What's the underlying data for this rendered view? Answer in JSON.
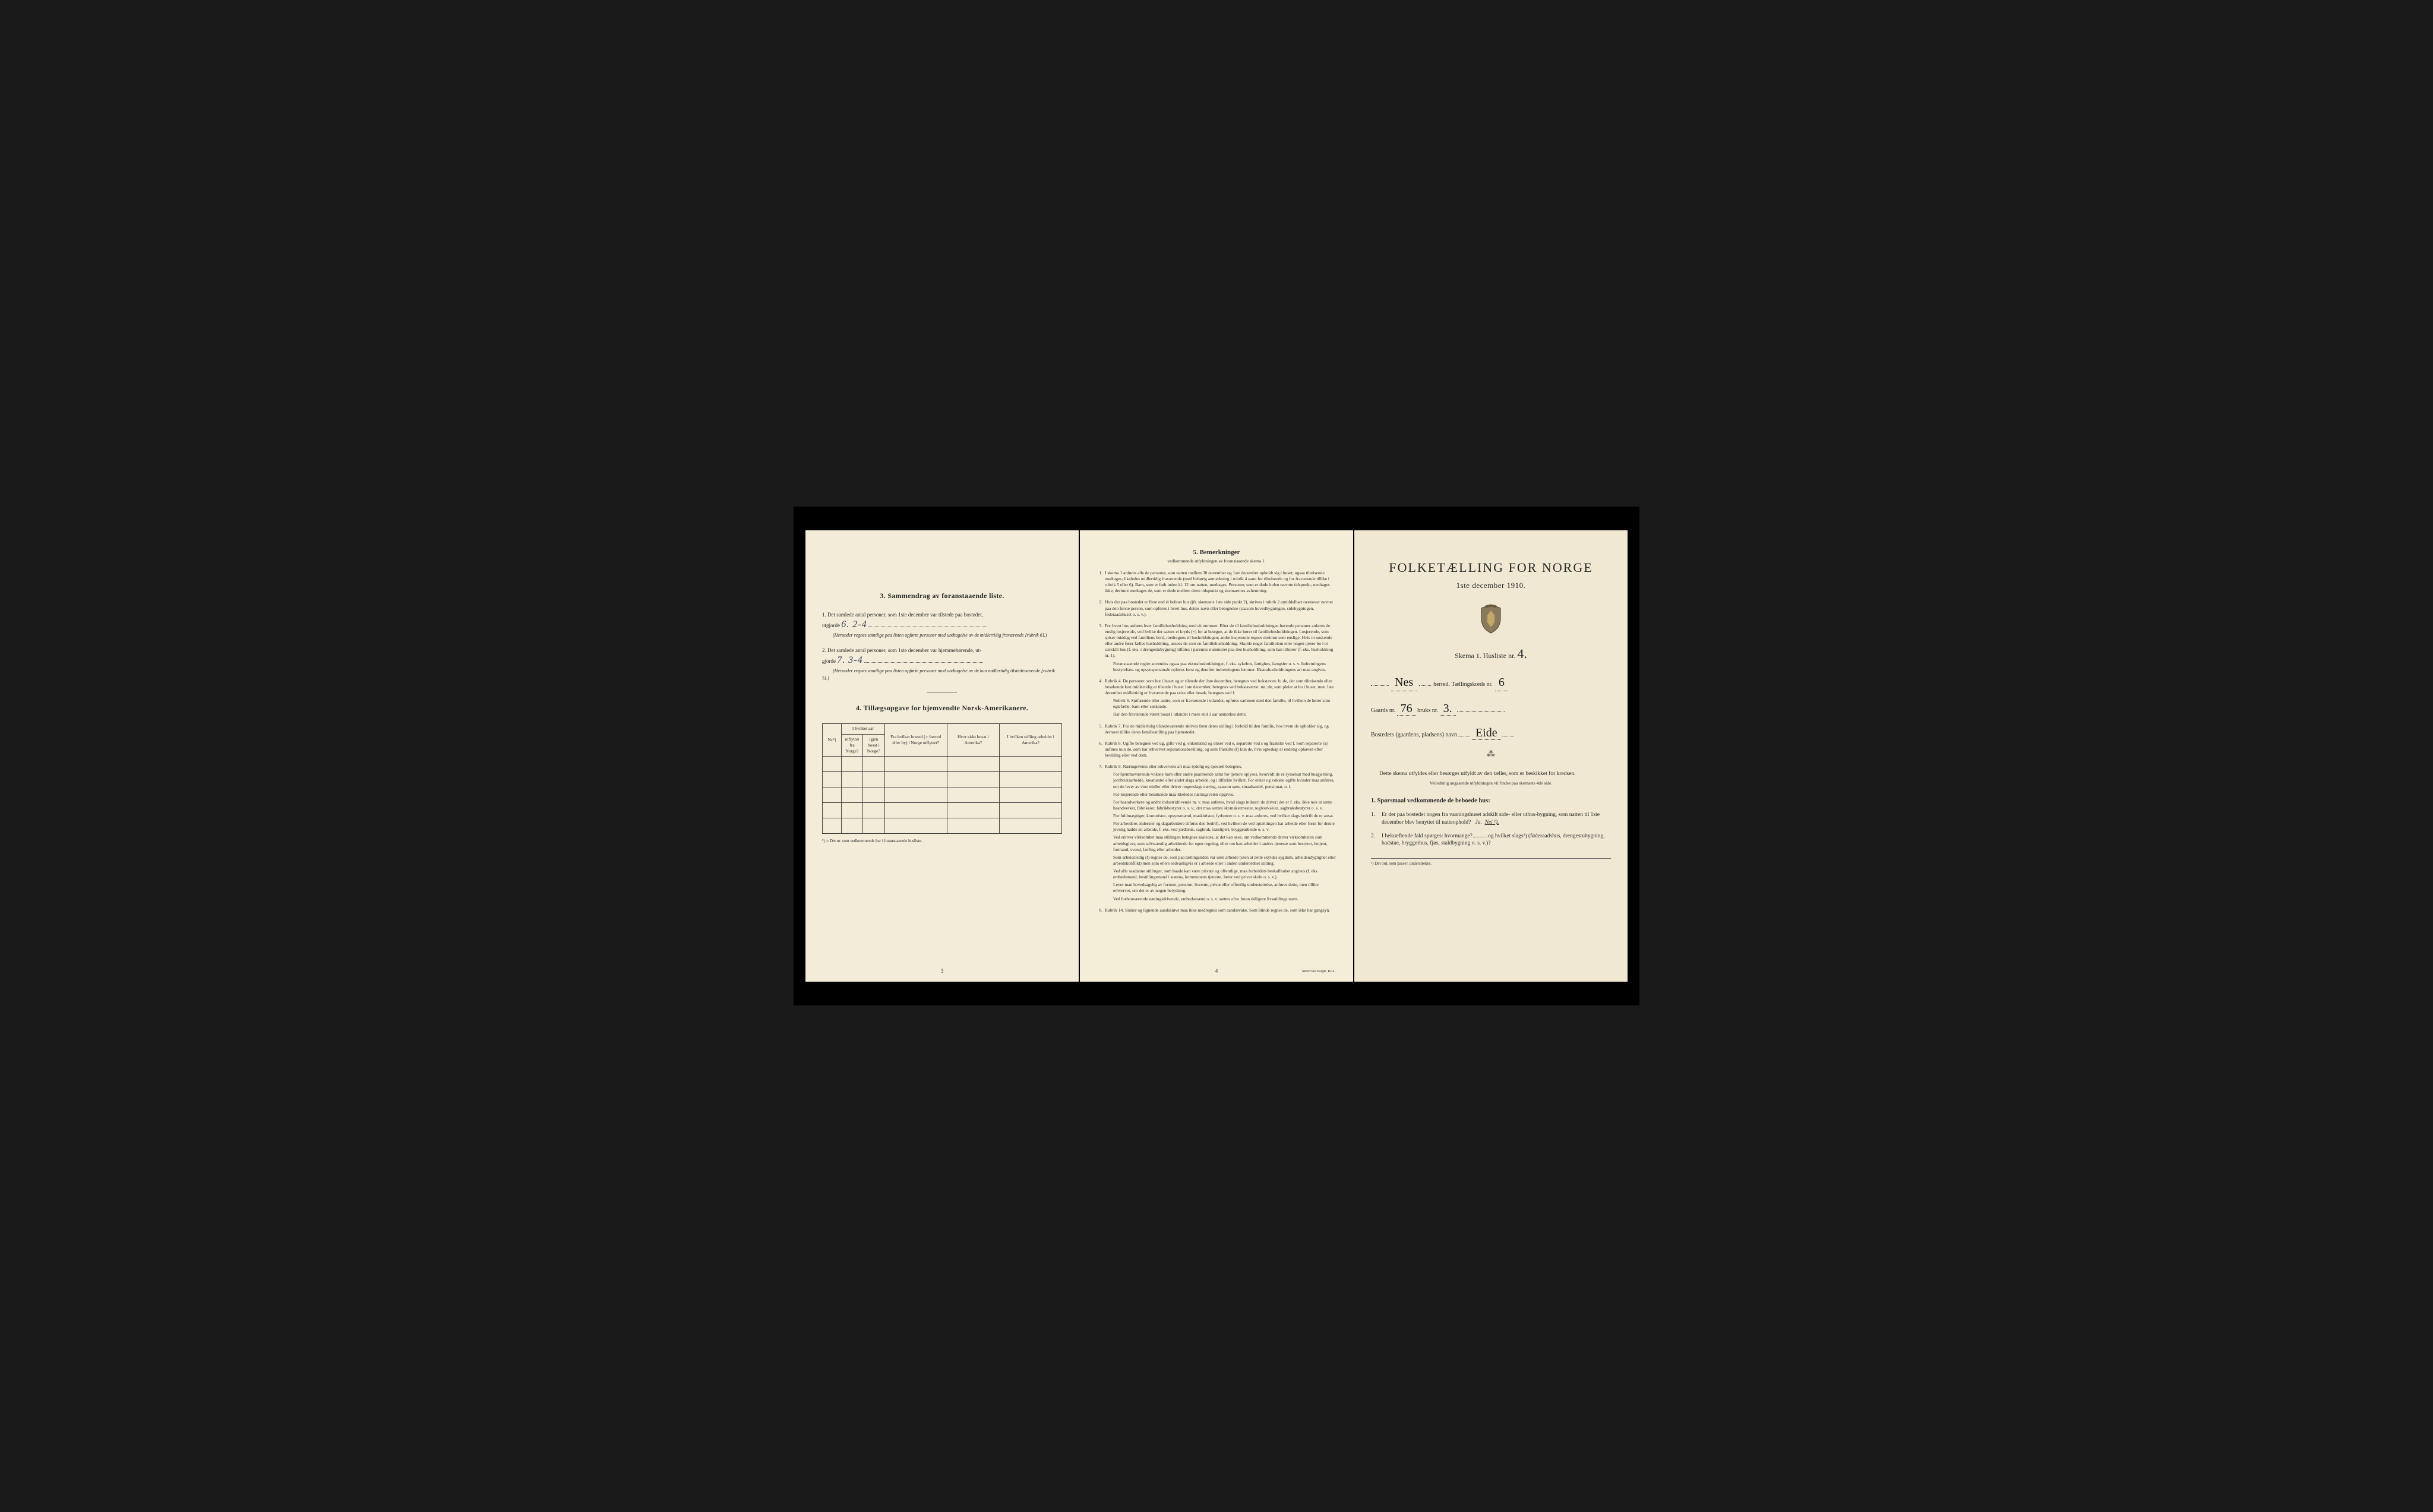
{
  "page1": {
    "section3_heading": "3.   Sammendrag av foranstaaende liste.",
    "item1_text": "1.  Det samlede antal personer, som 1ste december var tilstede paa bostedet,",
    "item1_label": "utgjorde",
    "item1_value": "6.  2-4",
    "item1_note": "(Herunder regnes samtlige paa listen opførte personer med undtagelse av de midlertidig fraværende [rubrik 6].)",
    "item2_text": "2.  Det samlede antal personer, som 1ste december var hjemmehørende, ut-",
    "item2_label": "gjorde",
    "item2_value": "7.  3-4",
    "item2_note": "(Herunder regnes samtlige paa listen opførte personer med undtagelse av de kun midlertidig tilstedeværende [rubrik 5].)",
    "section4_heading": "4.  Tillægsopgave for hjemvendte Norsk-Amerikanere.",
    "th_nr": "Nr.¹)",
    "th_utflyttet": "I hvilket aar utflyttet fra Norge?",
    "th_igjen": "igjen bosat i Norge?",
    "th_bosted": "Fra hvilket bosted (ɔ: herred eller by) i Norge utflyttet?",
    "th_sidst": "Hvor sidst bosat i Amerika?",
    "th_stilling": "I hvilken stilling arbeidet i Amerika?",
    "footnote1": "¹) ɔ: Det nr. som vedkommende har i foranstaaende husliste.",
    "page_num": "3"
  },
  "page2": {
    "title": "5.   Bemerkninger",
    "subtitle": "vedkommende utfyldningen av foranstaaende skema 1.",
    "items": [
      {
        "n": "1.",
        "body": [
          "I skema 1 anføres alle de personer, som natten mellem 30 november og 1ste december opholdt sig i huset; ogsaa tilreisende medtages; likeledes midlertidig fraværende (med behørig anmerkning i rubrik 4 samt for tilreisende og for fraværende tillike i rubrik 5 eller 6). Barn, som er født inden kl. 12 om natten, medtages. Personer, som er døde inden nævnte tidspunkt, medtages ikke; derimot medtages de, som er døde mellem dette tidspunkt og skemaernes avhentning."
        ]
      },
      {
        "n": "2.",
        "body": [
          "Hvis der paa bostedet er flere end ét beboet hus (jfr. skemaets 1ste side punkt 2), skrives i rubrik 2 umiddelbart ovenover navnet paa den første person, som opføres i hvert hus, dettes navn eller betegnelse (saasom hovedbygningen, sidebygningen, føderaadshuset o. s. v.)."
        ]
      },
      {
        "n": "3.",
        "body": [
          "For hvert hus anføres hver familiehusholdning med sit nummer. Efter de til familiehusholdningen hørende personer anføres de enslig losjerende, ved hvilke der sættes et kryds (×) for at betegne, at de ikke hører til familiehusholdningen. Losjerende, som spiser middag ved familiens bord, medregnes til husholdningen; andre losjerende regnes derimot som enslige. Hvis to søskende eller andre fører fælles husholdning, ansees de som en familiehusholdning. Skulde noget familielem eller nogen tjener bo i et særskilt hus (f. eks. i drengestubygning) tilføies i parentes nummeret paa den husholdning, som han tilhører (f. eks. husholdning nr. 1).",
          "Foranstaaende regler anvendes ogsaa paa ekstrahusholdninger, f. eks. sykehus, fattighus, fængsler o. s. v. Indretningens bestyrelses- og opsynspersonale opføres først og derefter indretningens lemmer. Ekstrahusholdningens art maa angives."
        ]
      },
      {
        "n": "4.",
        "body": [
          "Rubrik 4. De personer, som bor i huset og er tilstede der 1ste december, betegnes ved bokstaven: b; de, der som tilreisende eller besøkende kun midlertidig er tilstede i huset 1ste december, betegnes ved bokstaverne: mt; de, som pleier at bo i huset, men 1ste december midlertidig er fraværende paa reise eller besøk, betegnes ved f.",
          "Rubrik 6. Sjøfarende eller andre, som er fraværende i utlandet, opføres sammen med den familie, til hvilken de hører som egtefælle, barn eller søskende.",
          "Har den fraværende været bosat i utlandet i mere end 1 aar anmerkes dette."
        ]
      },
      {
        "n": "5.",
        "body": [
          "Rubrik 7. For de midlertidig tilstedeværende skrives først deres stilling i forhold til den familie, hos hvem de opholder sig, og dernæst tillike deres familiestilling paa hjemstedet."
        ]
      },
      {
        "n": "6.",
        "body": [
          "Rubrik 8. Ugifte betegnes ved ug, gifte ved g, enkemænd og enker ved e, separerte ved s og fraskilte ved f. Som separerte (s) anføres kun de, som har erhvervet separationsbevilling, og som fraskilte (f) kun de, hvis egteskap er endelig ophævet efter bevilling eller ved dom."
        ]
      },
      {
        "n": "7.",
        "body": [
          "Rubrik 9. Næringsveien eller erhvervets art maa tydelig og specielt betegnes.",
          "For hjemmeværende voksne barn eller andre paarørende samt for tjenere oplyses, hvorvidt de er sysselsat med husgjerning, jordbruksarbeide, kreaturstel eller andet slags arbeide, og i tilfælde hvilket. For enker og voksne ugifte kvinder maa anføres, om de lever av sine midler eller driver nogenslags næring, saasom søm, smaahandel, pensionat, o. l.",
          "For losjerende eller besøkende maa likeledes næringsveien opgives.",
          "For haandverkere og andre industridrivende m. v. maa anføres, hvad slags industri de driver; det er f. eks. ikke nok at sætte haandverker, fabrikeier, fabrikbestyrer o. s. v.; der maa sættes skomakermester, teglverkseier, sagbruksbestyrer o. s. v.",
          "For fuldmægtiger, kontorister, opsynsmænd, maskinister, fyrbøtere o. s. v. maa anføres, ved hvilket slags bedrift de er ansat.",
          "For arbeidere, inderster og dagarbeidere tilføies den bedrift, ved hvilken de ved optællingen har arbeide eller forut for denne jevnlig hadde sit arbeide, f. eks. ved jordbruk, sagbruk, træsliperi, bryggearbeide o. s. v.",
          "Ved enhver virksomhet maa stillingen betegnes saaledes, at det kan sees, om vedkommende driver virksomheten som arbeidsgiver, som selvstændig arbeidende for egen regning, eller om han arbeider i andres tjeneste som bestyrer, betjent, formand, svend, lærling eller arbeider.",
          "Som arbeidsledig (l) regnes de, som paa tællingstiden var uten arbeide (uten at dette skyldes sygdom, arbeidsudygtighet eller arbeidskonflikt) men som ellers sedvanligvis er i arbeide eller i anden underordnet stilling.",
          "Ved alle saadanne stillinger, som baade kan være private og offentlige, maa forholdets beskaffenhet angives (f. eks. embedsmand, bestillingsmand i statens, kommunens tjeneste, lærer ved privat skole o. s. v.).",
          "Lever man hovedsagelig av formue, pension, livrente, privat eller offentlig understøttelse, anføres dette, men tillike erhvervet, om det er av nogen betydning.",
          "Ved forhenværende næringsdrivende, embedsmænd o. s. v. sættes «fv» foran tidligere livsstillings navn."
        ]
      },
      {
        "n": "8.",
        "body": [
          "Rubrik 14. Sinker og lignende aandssløve maa ikke medregnes som aandssvake. Som blinde regnes de, som ikke har gangsyn."
        ]
      }
    ],
    "page_num": "4",
    "printer": "Steen'ske Bogtr.  Kr.a."
  },
  "page3": {
    "main_title": "FOLKETÆLLING FOR NORGE",
    "date": "1ste december 1910.",
    "skema_label": "Skema 1.  Husliste nr.",
    "skema_nr": "4.",
    "herred_value": "Nes",
    "herred_label": "herred.  Tællingskreds nr.",
    "kreds_nr": "6",
    "gaard_label": "Gaards nr.",
    "gaard_nr": "76",
    "bruk_label": "bruks nr.",
    "bruk_nr": "3.",
    "bosted_label": "Bostedets (gaardens, pladsens) navn",
    "bosted_value": "Eide",
    "instruct": "Dette skema utfyldes eller besørges utfyldt av den tæller, som er beskikket for kredsen.",
    "instruct_sub": "Veiledning angaaende utfyldningen vil findes paa skemaets 4de side.",
    "q_heading": "1. Spørsmaal vedkommende de beboede hus:",
    "q1": "Er der paa bostedet nogen fra vaaningshuset adskilt side- eller uthus-bygning, som natten til 1ste december blev benyttet til natteophold?",
    "q1_ja": "Ja.",
    "q1_nei": "Nei ¹).",
    "q2": "I bekræftende fald spørges: hvormange?...........og hvilket slags¹) (føderaadshus, drengestubygning, badstue, bryggerhus, fjøs, staldbygning o. s. v.)?",
    "foot": "¹) Det ord, som passer, understrekes."
  }
}
